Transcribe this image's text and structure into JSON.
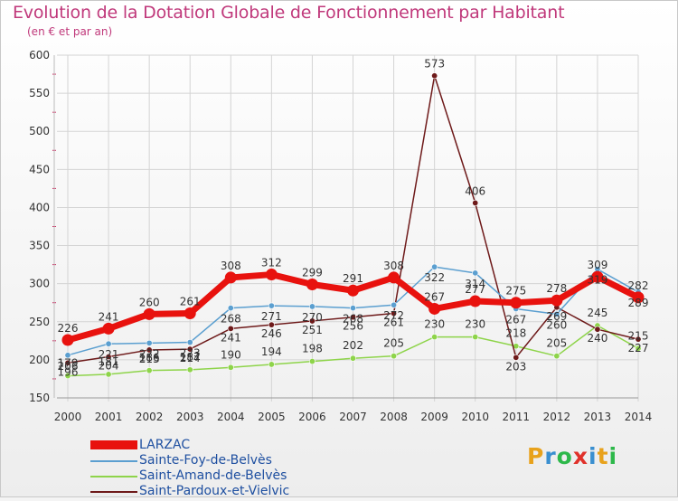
{
  "header": {
    "title": "Evolution de la Dotation Globale de Fonctionnement par Habitant",
    "subtitle": "(en € et par an)"
  },
  "brand": {
    "letters": [
      "P",
      "r",
      "o",
      "x",
      "i",
      "t",
      "i"
    ],
    "colors": [
      "#e8a21c",
      "#3a8fd0",
      "#2db84a",
      "#e0312a",
      "#3a8fd0",
      "#e8a21c",
      "#2db84a"
    ]
  },
  "chart_data": {
    "type": "line",
    "title": "Evolution de la Dotation Globale de Fonctionnement par Habitant",
    "subtitle": "(en € et par an)",
    "x": [
      2000,
      2001,
      2002,
      2003,
      2004,
      2005,
      2006,
      2007,
      2008,
      2009,
      2010,
      2011,
      2012,
      2013,
      2014
    ],
    "ylim": [
      150,
      600
    ],
    "yticks": [
      150,
      200,
      250,
      300,
      350,
      400,
      450,
      500,
      550,
      600
    ],
    "grid": true,
    "legend_position": "bottom-left",
    "series": [
      {
        "name": "LARZAC",
        "color": "#e8120e",
        "values": [
          226,
          241,
          260,
          261,
          308,
          312,
          299,
          291,
          308,
          267,
          277,
          275,
          278,
          309,
          282
        ],
        "labels": [
          "226",
          "241",
          "260",
          "261",
          "308",
          "312",
          "299",
          "291",
          "308",
          "267",
          "277",
          "275",
          "278",
          "309",
          "282"
        ]
      },
      {
        "name": "Sainte-Foy-de-Belvès",
        "color": "#5b9fd0",
        "values": [
          206,
          221,
          222,
          223,
          268,
          271,
          270,
          268,
          272,
          322,
          314,
          267,
          260,
          319,
          289
        ],
        "labels": [
          "206",
          "221",
          "222",
          "223",
          "268",
          "271",
          "270",
          "268",
          "272",
          "322",
          "314",
          "267",
          "260",
          "319",
          "289"
        ]
      },
      {
        "name": "Saint-Amand-de-Belvès",
        "color": "#8ed44a",
        "values": [
          179,
          181,
          186,
          187,
          190,
          194,
          198,
          202,
          205,
          230,
          230,
          218,
          205,
          245,
          215
        ],
        "labels": [
          "179",
          "181",
          "186",
          "187",
          "190",
          "194",
          "198",
          "202",
          "205",
          "230",
          "230",
          "218",
          "205",
          "245",
          "215"
        ]
      },
      {
        "name": "Saint-Pardoux-et-Vielvic",
        "color": "#6e1a1a",
        "values": [
          196,
          204,
          213,
          214,
          241,
          246,
          251,
          256,
          261,
          573,
          406,
          203,
          269,
          240,
          227
        ],
        "labels": [
          "196",
          "204",
          "213",
          "214",
          "241",
          "246",
          "251",
          "256",
          "261",
          "573",
          "406",
          "203",
          "269",
          "240",
          "227"
        ]
      }
    ]
  }
}
